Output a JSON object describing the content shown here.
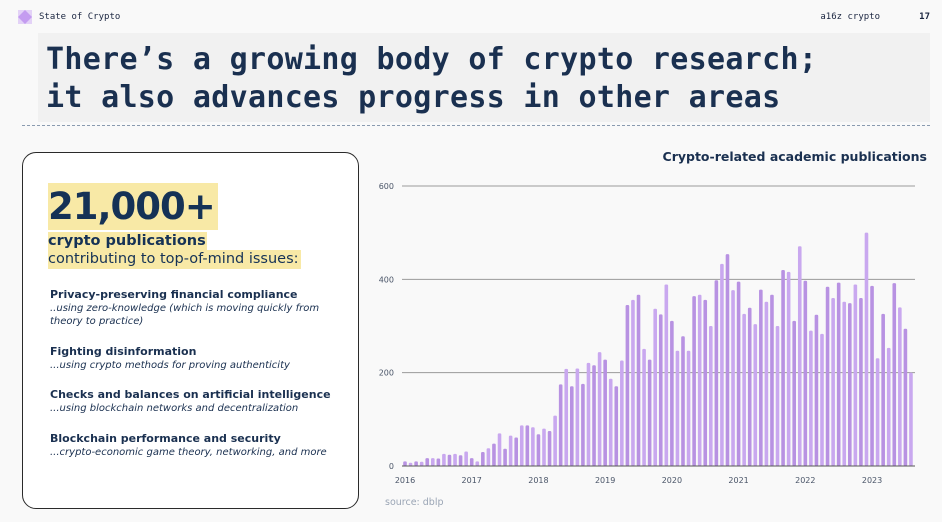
{
  "header": {
    "brand": "State of Crypto",
    "org": "a16z crypto",
    "page": "17",
    "logo_icon": "purple-diamond-logo"
  },
  "title": {
    "line1": "There’s a growing body of crypto research;",
    "line2": "it also advances progress in other areas"
  },
  "card": {
    "stat": "21,000+",
    "stat_label": "crypto publications",
    "stat_sub": "contributing to top-of-mind issues:",
    "items": [
      {
        "heading": "Privacy-preserving financial compliance",
        "desc": "..using zero-knowledge (which is moving quickly from theory to practice)"
      },
      {
        "heading": "Fighting disinformation",
        "desc": "...using crypto methods for proving authenticity"
      },
      {
        "heading": "Checks and balances on artificial intelligence",
        "desc": "...using blockchain networks and decentralization"
      },
      {
        "heading": "Blockchain performance and security",
        "desc": "...crypto-economic game theory, networking, and more"
      }
    ]
  },
  "chart_data": {
    "type": "bar",
    "title": "Crypto-related academic publications",
    "source": "source: dblp",
    "xlabel": "",
    "ylabel": "",
    "ylim": [
      0,
      600
    ],
    "yticks": [
      0,
      200,
      400,
      600
    ],
    "xtick_labels": [
      "2016",
      "2017",
      "2018",
      "2019",
      "2020",
      "2021",
      "2022",
      "2023"
    ],
    "x_start": "2016-01",
    "x_interval": "month",
    "grid": true,
    "bar_color": "#c4a3ea",
    "values": [
      10,
      7,
      10,
      9,
      17,
      17,
      16,
      26,
      24,
      26,
      23,
      31,
      17,
      10,
      30,
      38,
      48,
      70,
      37,
      65,
      61,
      87,
      87,
      83,
      68,
      80,
      75,
      108,
      175,
      208,
      171,
      209,
      176,
      221,
      216,
      244,
      228,
      187,
      171,
      226,
      345,
      356,
      367,
      251,
      228,
      337,
      325,
      389,
      311,
      247,
      278,
      247,
      364,
      367,
      356,
      300,
      398,
      433,
      454,
      377,
      395,
      326,
      339,
      304,
      378,
      352,
      367,
      300,
      420,
      416,
      311,
      471,
      397,
      290,
      324,
      283,
      384,
      360,
      393,
      352,
      349,
      389,
      360,
      500,
      386,
      231,
      326,
      253,
      392,
      340,
      294,
      200
    ]
  }
}
